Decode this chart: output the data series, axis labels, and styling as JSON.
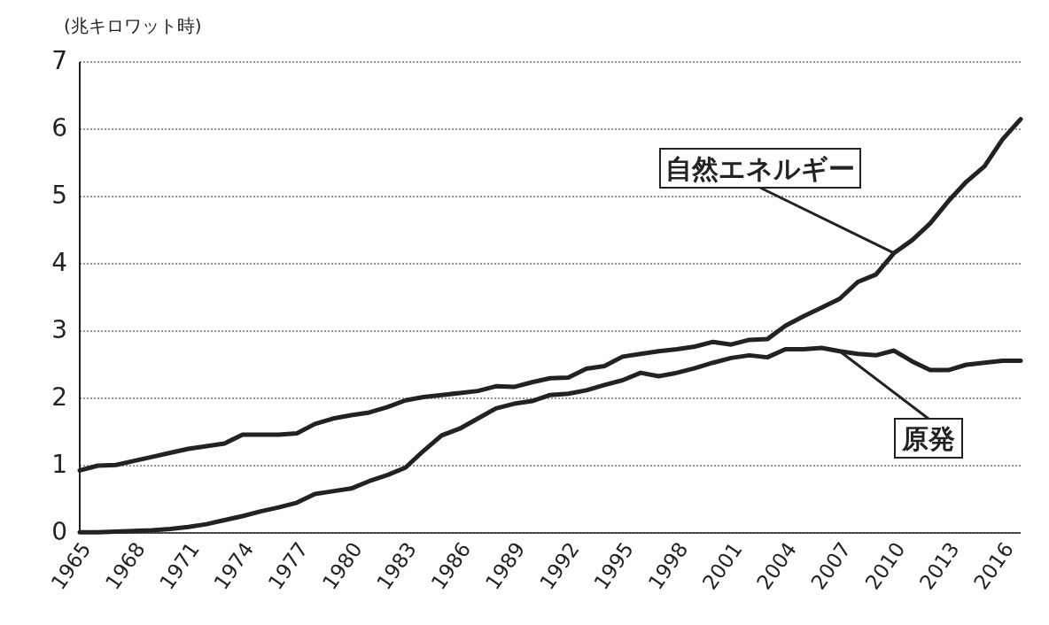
{
  "chart_data": {
    "type": "line",
    "ylabel": "(兆キロワット時)",
    "x": [
      1965,
      1966,
      1967,
      1968,
      1969,
      1970,
      1971,
      1972,
      1973,
      1974,
      1975,
      1976,
      1977,
      1978,
      1979,
      1980,
      1981,
      1982,
      1983,
      1984,
      1985,
      1986,
      1987,
      1988,
      1989,
      1990,
      1991,
      1992,
      1993,
      1994,
      1995,
      1996,
      1997,
      1998,
      1999,
      2000,
      2001,
      2002,
      2003,
      2004,
      2005,
      2006,
      2007,
      2008,
      2009,
      2010,
      2011,
      2012,
      2013,
      2014,
      2015,
      2016,
      2017
    ],
    "series": [
      {
        "name": "自然エネルギー",
        "color": "#222222",
        "values": [
          0.93,
          1.0,
          1.01,
          1.07,
          1.13,
          1.19,
          1.25,
          1.29,
          1.33,
          1.46,
          1.46,
          1.46,
          1.48,
          1.62,
          1.7,
          1.75,
          1.79,
          1.87,
          1.97,
          2.02,
          2.05,
          2.08,
          2.11,
          2.18,
          2.17,
          2.24,
          2.3,
          2.31,
          2.44,
          2.48,
          2.62,
          2.66,
          2.7,
          2.73,
          2.77,
          2.84,
          2.8,
          2.87,
          2.88,
          3.08,
          3.22,
          3.35,
          3.48,
          3.73,
          3.84,
          4.16,
          4.35,
          4.6,
          4.93,
          5.22,
          5.45,
          5.85,
          6.15
        ]
      },
      {
        "name": "原発",
        "color": "#222222",
        "values": [
          0.01,
          0.01,
          0.02,
          0.03,
          0.04,
          0.06,
          0.09,
          0.13,
          0.19,
          0.25,
          0.32,
          0.38,
          0.45,
          0.58,
          0.62,
          0.66,
          0.77,
          0.86,
          0.97,
          1.22,
          1.45,
          1.55,
          1.7,
          1.85,
          1.92,
          1.96,
          2.05,
          2.07,
          2.12,
          2.2,
          2.27,
          2.38,
          2.33,
          2.38,
          2.45,
          2.53,
          2.6,
          2.64,
          2.61,
          2.73,
          2.73,
          2.75,
          2.7,
          2.66,
          2.64,
          2.71,
          2.55,
          2.42,
          2.42,
          2.5,
          2.53,
          2.56,
          2.56
        ]
      }
    ],
    "xlim": [
      1965,
      2017
    ],
    "xticks": [
      1965,
      1968,
      1971,
      1974,
      1977,
      1980,
      1983,
      1986,
      1989,
      1992,
      1995,
      1998,
      2001,
      2004,
      2007,
      2010,
      2013,
      2016
    ],
    "ylim": [
      0,
      7
    ],
    "yticks": [
      0,
      1,
      2,
      3,
      4,
      5,
      6,
      7
    ],
    "grid": "y",
    "legend": false,
    "marker": "none",
    "line_style": "solid"
  }
}
